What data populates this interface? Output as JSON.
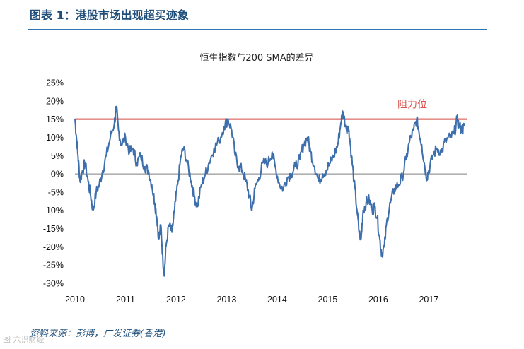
{
  "figure": {
    "title": "图表 1：港股市场出现超买迹象",
    "source": "资料来源：彭博，广发证券(香港)",
    "watermark": "图 六识财经"
  },
  "colors": {
    "series": "#3e6fad",
    "resistance": "#d64a45",
    "zero_line": "#7f7f7f",
    "rule": "#2e75b6"
  },
  "chart_data": {
    "type": "line",
    "title": "恒生指数与200 SMA的差异",
    "xlabel": "",
    "ylabel": "",
    "x_range": [
      2010,
      2017.75
    ],
    "ylim": [
      -30,
      25
    ],
    "y_ticks": [
      25,
      20,
      15,
      10,
      5,
      0,
      -5,
      -10,
      -15,
      -20,
      -25,
      -30
    ],
    "y_tick_labels": [
      "25%",
      "20%",
      "15%",
      "10%",
      "5%",
      "0%",
      "-5%",
      "-10%",
      "-15%",
      "-20%",
      "-25%",
      "-30%"
    ],
    "x_ticks": [
      2010,
      2011,
      2012,
      2013,
      2014,
      2015,
      2016,
      2017
    ],
    "x_tick_labels": [
      "2010",
      "2011",
      "2012",
      "2013",
      "2014",
      "2015",
      "2016",
      "2017"
    ],
    "reference_line": {
      "y": 15,
      "label": "阻力位"
    },
    "series": [
      {
        "name": "恒生指数与200 SMA的差异",
        "points": [
          [
            2010.0,
            15
          ],
          [
            2010.03,
            10
          ],
          [
            2010.06,
            5
          ],
          [
            2010.1,
            -2
          ],
          [
            2010.15,
            1
          ],
          [
            2010.2,
            3
          ],
          [
            2010.26,
            -2
          ],
          [
            2010.31,
            -6
          ],
          [
            2010.36,
            -10
          ],
          [
            2010.42,
            -5
          ],
          [
            2010.48,
            -3
          ],
          [
            2010.55,
            1
          ],
          [
            2010.62,
            5
          ],
          [
            2010.7,
            10
          ],
          [
            2010.78,
            14
          ],
          [
            2010.82,
            18
          ],
          [
            2010.86,
            12
          ],
          [
            2010.92,
            8
          ],
          [
            2011.0,
            10
          ],
          [
            2011.08,
            6
          ],
          [
            2011.15,
            7
          ],
          [
            2011.22,
            3
          ],
          [
            2011.3,
            5
          ],
          [
            2011.38,
            2
          ],
          [
            2011.45,
            1
          ],
          [
            2011.52,
            -3
          ],
          [
            2011.58,
            -8
          ],
          [
            2011.62,
            -12
          ],
          [
            2011.66,
            -18
          ],
          [
            2011.7,
            -14
          ],
          [
            2011.74,
            -24
          ],
          [
            2011.77,
            -27
          ],
          [
            2011.8,
            -20
          ],
          [
            2011.86,
            -14
          ],
          [
            2011.92,
            -16
          ],
          [
            2011.97,
            -10
          ],
          [
            2012.03,
            -3
          ],
          [
            2012.1,
            5
          ],
          [
            2012.15,
            7
          ],
          [
            2012.22,
            3
          ],
          [
            2012.3,
            -2
          ],
          [
            2012.36,
            -6
          ],
          [
            2012.42,
            -9
          ],
          [
            2012.5,
            -3
          ],
          [
            2012.58,
            0
          ],
          [
            2012.65,
            3
          ],
          [
            2012.75,
            7
          ],
          [
            2012.85,
            9
          ],
          [
            2012.95,
            13
          ],
          [
            2013.03,
            15
          ],
          [
            2013.1,
            12
          ],
          [
            2013.17,
            5
          ],
          [
            2013.24,
            2
          ],
          [
            2013.31,
            1
          ],
          [
            2013.38,
            -2
          ],
          [
            2013.45,
            -6
          ],
          [
            2013.5,
            -10
          ],
          [
            2013.56,
            -4
          ],
          [
            2013.64,
            -1
          ],
          [
            2013.72,
            3
          ],
          [
            2013.82,
            3
          ],
          [
            2013.9,
            6
          ],
          [
            2013.96,
            2
          ],
          [
            2014.05,
            -3
          ],
          [
            2014.12,
            -4
          ],
          [
            2014.2,
            -1
          ],
          [
            2014.28,
            0
          ],
          [
            2014.36,
            2
          ],
          [
            2014.45,
            4
          ],
          [
            2014.52,
            8
          ],
          [
            2014.6,
            10
          ],
          [
            2014.66,
            6
          ],
          [
            2014.74,
            2
          ],
          [
            2014.82,
            -2
          ],
          [
            2014.9,
            0
          ],
          [
            2014.97,
            1
          ],
          [
            2015.05,
            3
          ],
          [
            2015.12,
            5
          ],
          [
            2015.2,
            8
          ],
          [
            2015.26,
            14
          ],
          [
            2015.3,
            17
          ],
          [
            2015.36,
            13
          ],
          [
            2015.42,
            12
          ],
          [
            2015.47,
            5
          ],
          [
            2015.52,
            -2
          ],
          [
            2015.58,
            -10
          ],
          [
            2015.62,
            -16
          ],
          [
            2015.66,
            -18
          ],
          [
            2015.7,
            -10
          ],
          [
            2015.76,
            -8
          ],
          [
            2015.82,
            -7
          ],
          [
            2015.88,
            -10
          ],
          [
            2015.93,
            -9
          ],
          [
            2015.98,
            -12
          ],
          [
            2016.03,
            -18
          ],
          [
            2016.07,
            -22
          ],
          [
            2016.12,
            -20
          ],
          [
            2016.18,
            -12
          ],
          [
            2016.24,
            -8
          ],
          [
            2016.32,
            -4
          ],
          [
            2016.4,
            -3
          ],
          [
            2016.47,
            -1
          ],
          [
            2016.55,
            4
          ],
          [
            2016.62,
            9
          ],
          [
            2016.7,
            12
          ],
          [
            2016.76,
            15
          ],
          [
            2016.8,
            12
          ],
          [
            2016.86,
            8
          ],
          [
            2016.92,
            2
          ],
          [
            2016.96,
            -1
          ],
          [
            2017.0,
            1
          ],
          [
            2017.08,
            5
          ],
          [
            2017.16,
            7
          ],
          [
            2017.25,
            6
          ],
          [
            2017.33,
            9
          ],
          [
            2017.42,
            10
          ],
          [
            2017.5,
            11
          ],
          [
            2017.56,
            15
          ],
          [
            2017.6,
            13
          ],
          [
            2017.66,
            12
          ],
          [
            2017.7,
            13
          ]
        ]
      }
    ]
  }
}
